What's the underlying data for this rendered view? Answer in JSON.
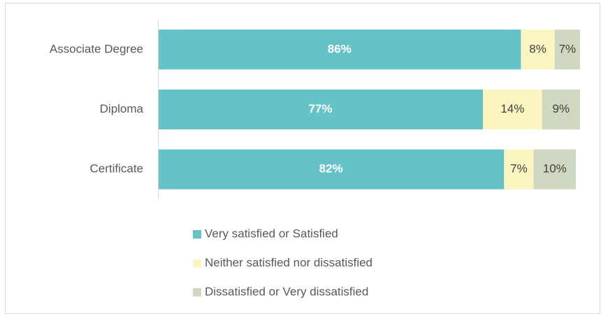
{
  "chart_data": {
    "type": "stacked_bar",
    "orientation": "horizontal",
    "categories": [
      "Associate Degree",
      "Diploma",
      "Certificate"
    ],
    "series": [
      {
        "name": "Very satisfied or Satisfied",
        "color": "#65c3c8",
        "values": [
          86,
          77,
          82
        ],
        "value_labels": [
          "86%",
          "77%",
          "82%"
        ]
      },
      {
        "name": "Neither satisfied nor dissatisfied",
        "color": "#fbf5c0",
        "values": [
          8,
          14,
          7
        ],
        "value_labels": [
          "8%",
          "14%",
          "7%"
        ]
      },
      {
        "name": "Dissatisfied or Very dissatisfied",
        "color": "#cfd8c0",
        "values": [
          7,
          9,
          10
        ],
        "value_labels": [
          "7%",
          "9%",
          "10%"
        ]
      }
    ],
    "xlim": [
      0,
      100
    ],
    "legend": "bottom"
  }
}
